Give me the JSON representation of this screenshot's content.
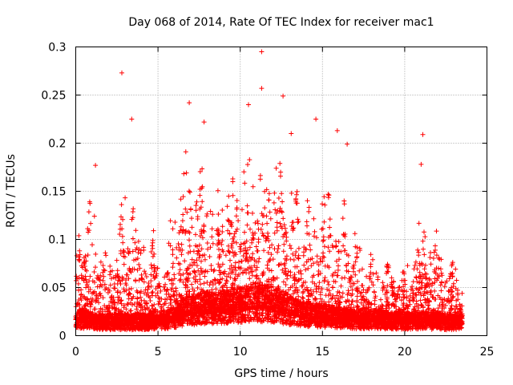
{
  "chart_data": {
    "type": "scatter",
    "title": "Day 068 of 2014, Rate Of TEC Index for receiver mac1",
    "xlabel": "GPS time / hours",
    "ylabel": "ROTI / TECUs",
    "xlim": [
      0,
      25
    ],
    "ylim": [
      0,
      0.3
    ],
    "xticks": [
      0,
      5,
      10,
      15,
      20,
      25
    ],
    "xtick_labels": [
      "0",
      "5",
      "10",
      "15",
      "20",
      "25"
    ],
    "yticks": [
      0,
      0.05,
      0.1,
      0.15,
      0.2,
      0.25,
      0.3
    ],
    "ytick_labels": [
      "0",
      "0.05",
      "0.1",
      "0.15",
      "0.2",
      "0.25",
      "0.3"
    ],
    "grid": true,
    "marker": "+",
    "series_color": "#ff0000",
    "point_count_estimate": 7000,
    "data_x_range": [
      0,
      23.5
    ],
    "notable_points": [
      {
        "x": 11.3,
        "y": 0.295
      },
      {
        "x": 2.8,
        "y": 0.273
      },
      {
        "x": 11.3,
        "y": 0.257
      },
      {
        "x": 12.6,
        "y": 0.249
      },
      {
        "x": 6.9,
        "y": 0.242
      },
      {
        "x": 10.5,
        "y": 0.24
      },
      {
        "x": 3.4,
        "y": 0.225
      },
      {
        "x": 14.6,
        "y": 0.225
      },
      {
        "x": 7.8,
        "y": 0.222
      },
      {
        "x": 15.9,
        "y": 0.213
      },
      {
        "x": 21.1,
        "y": 0.209
      },
      {
        "x": 13.1,
        "y": 0.21
      },
      {
        "x": 16.5,
        "y": 0.199
      },
      {
        "x": 21.0,
        "y": 0.178
      },
      {
        "x": 1.2,
        "y": 0.177
      }
    ],
    "activity_envelope": {
      "hours": [
        0,
        0.5,
        1,
        1.5,
        2,
        2.5,
        3,
        3.5,
        4,
        4.5,
        5,
        5.5,
        6,
        6.5,
        7,
        7.5,
        8,
        8.5,
        9,
        9.5,
        10,
        10.5,
        11,
        11.5,
        12,
        12.5,
        13,
        13.5,
        14,
        14.5,
        15,
        15.5,
        16,
        16.5,
        17,
        17.5,
        18,
        18.5,
        19,
        19.5,
        20,
        20.5,
        21,
        21.5,
        22,
        22.5,
        23,
        23.5
      ],
      "upper_roti": [
        0.13,
        0.14,
        0.16,
        0.12,
        0.08,
        0.13,
        0.17,
        0.19,
        0.14,
        0.13,
        0.09,
        0.1,
        0.18,
        0.2,
        0.2,
        0.19,
        0.2,
        0.18,
        0.17,
        0.18,
        0.19,
        0.2,
        0.21,
        0.2,
        0.2,
        0.2,
        0.18,
        0.17,
        0.16,
        0.18,
        0.17,
        0.16,
        0.17,
        0.15,
        0.12,
        0.1,
        0.09,
        0.08,
        0.08,
        0.07,
        0.07,
        0.11,
        0.13,
        0.12,
        0.12,
        0.08,
        0.09,
        0.06
      ],
      "baseline_roti": [
        0.015,
        0.015,
        0.013,
        0.012,
        0.012,
        0.012,
        0.012,
        0.012,
        0.012,
        0.012,
        0.012,
        0.013,
        0.016,
        0.02,
        0.022,
        0.023,
        0.024,
        0.024,
        0.025,
        0.026,
        0.027,
        0.028,
        0.029,
        0.028,
        0.027,
        0.025,
        0.022,
        0.02,
        0.019,
        0.018,
        0.017,
        0.016,
        0.016,
        0.015,
        0.014,
        0.014,
        0.014,
        0.014,
        0.013,
        0.013,
        0.013,
        0.013,
        0.013,
        0.013,
        0.013,
        0.012,
        0.012,
        0.012
      ]
    }
  }
}
